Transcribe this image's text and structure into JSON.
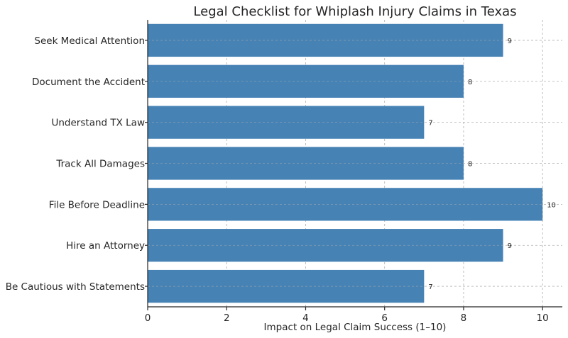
{
  "chart_data": {
    "type": "bar",
    "orientation": "horizontal",
    "title": "Legal Checklist for Whiplash Injury Claims in Texas",
    "xlabel": "Impact on Legal Claim Success (1–10)",
    "ylabel": "",
    "categories": [
      "Seek Medical Attention",
      "Document the Accident",
      "Understand TX Law",
      "Track All Damages",
      "File Before Deadline",
      "Hire an Attorney",
      "Be Cautious with Statements"
    ],
    "values": [
      9,
      8,
      7,
      8,
      10,
      9,
      7
    ],
    "xlim": [
      0,
      10.5
    ],
    "xticks": [
      0,
      2,
      4,
      6,
      8,
      10
    ],
    "grid": true,
    "bar_color": "#4682b4",
    "data_labels": true
  }
}
